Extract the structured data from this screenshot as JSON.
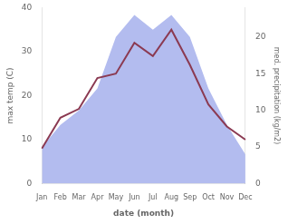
{
  "chart_data": {
    "type": "line",
    "categories": [
      "Jan",
      "Feb",
      "Mar",
      "Apr",
      "May",
      "Jun",
      "Jul",
      "Aug",
      "Sep",
      "Oct",
      "Nov",
      "Dec"
    ],
    "series": [
      {
        "type": "line",
        "color": "#8B3A52",
        "values": [
          8,
          15,
          17,
          24,
          25,
          32,
          29,
          35,
          27,
          18,
          13,
          10
        ]
      },
      {
        "type": "area",
        "color": "#b3bcef",
        "axis": "y2",
        "values": [
          5,
          8,
          10,
          13,
          20,
          23,
          21,
          23,
          20,
          13,
          8,
          4
        ]
      }
    ],
    "xlabel": "date (month)",
    "ylabel": "max temp (C)",
    "y2label": "med. precipitation (kg/m2)",
    "ylim": [
      0,
      40
    ],
    "yticks": [
      0,
      10,
      20,
      30,
      40
    ],
    "y2lim": [
      0,
      24
    ],
    "y2ticks": [
      0,
      5,
      10,
      15,
      20
    ],
    "grid": false
  }
}
